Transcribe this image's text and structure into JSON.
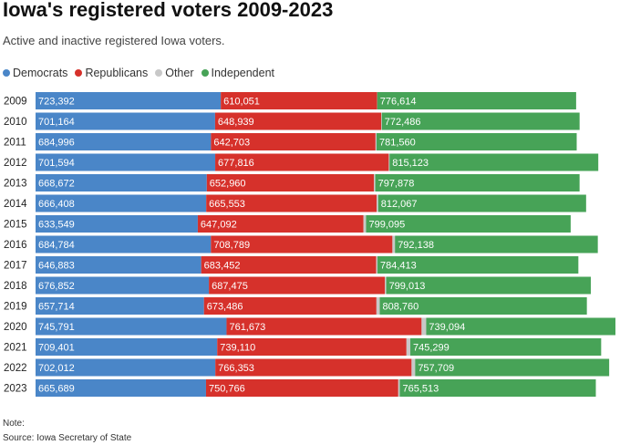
{
  "chart_data": {
    "type": "bar",
    "stacked": true,
    "orientation": "horizontal",
    "title": "Iowa's registered voters 2009-2023",
    "subtitle": "Active and inactive registered Iowa voters.",
    "categories": [
      "2009",
      "2010",
      "2011",
      "2012",
      "2013",
      "2014",
      "2015",
      "2016",
      "2017",
      "2018",
      "2019",
      "2020",
      "2021",
      "2022",
      "2023"
    ],
    "series": [
      {
        "name": "Democrats",
        "color": "#4a86c8",
        "values": [
          723392,
          701164,
          684996,
          701594,
          668672,
          666408,
          633549,
          684784,
          646883,
          676852,
          657714,
          745791,
          709401,
          702012,
          665689
        ],
        "labels": [
          "723,392",
          "701,164",
          "684,996",
          "701,594",
          "668,672",
          "666,408",
          "633,549",
          "684,784",
          "646,883",
          "676,852",
          "657,714",
          "745,791",
          "709,401",
          "702,012",
          "665,689"
        ]
      },
      {
        "name": "Republicans",
        "color": "#d6312b",
        "values": [
          610051,
          648939,
          642703,
          677816,
          652960,
          665553,
          647092,
          708789,
          683452,
          687475,
          673486,
          761673,
          739110,
          766353,
          750766
        ],
        "labels": [
          "610,051",
          "648,939",
          "642,703",
          "677,816",
          "652,960",
          "665,553",
          "647,092",
          "708,789",
          "683,452",
          "687,475",
          "673,486",
          "761,673",
          "739,110",
          "766,353",
          "750,766"
        ]
      },
      {
        "name": "Other",
        "color": "#c8c8c8",
        "values": [
          1000,
          2000,
          4000,
          3000,
          5000,
          6000,
          10000,
          10000,
          5000,
          5000,
          13000,
          18000,
          15000,
          14000,
          6000
        ],
        "labels": []
      },
      {
        "name": "Independent",
        "color": "#47a357",
        "values": [
          776614,
          772486,
          781560,
          815123,
          797878,
          812067,
          799095,
          792138,
          784413,
          799013,
          808760,
          739094,
          745299,
          757709,
          765513
        ],
        "labels": [
          "776,614",
          "772,486",
          "781,560",
          "815,123",
          "797,878",
          "812,067",
          "799,095",
          "792,138",
          "784,413",
          "799,013",
          "808,760",
          "739,094",
          "745,299",
          "757,709",
          "765,513"
        ]
      }
    ],
    "xlim": [
      0,
      2264558
    ],
    "legend": "top-left",
    "grid": false
  },
  "legend_items": [
    {
      "label": "Democrats",
      "color": "#4a86c8"
    },
    {
      "label": "Republicans",
      "color": "#d6312b"
    },
    {
      "label": "Other",
      "color": "#c8c8c8"
    },
    {
      "label": "Independent",
      "color": "#47a357"
    }
  ],
  "footer": {
    "note": "Note:",
    "source": "Source: Iowa Secretary of State"
  }
}
